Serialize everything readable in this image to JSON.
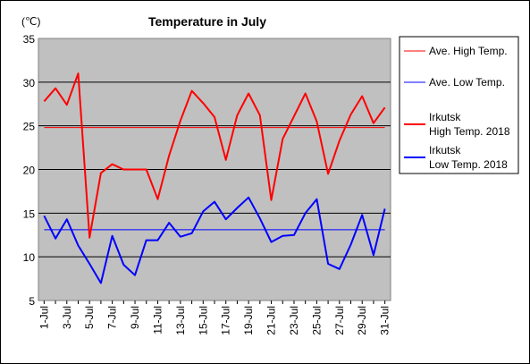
{
  "chart_data": {
    "type": "line",
    "title": "Temperature in July",
    "unit_label": "(℃)",
    "ylim": [
      5,
      35
    ],
    "y_ticks": [
      5,
      10,
      15,
      20,
      25,
      30,
      35
    ],
    "x": [
      "1-Jul",
      "2-Jul",
      "3-Jul",
      "4-Jul",
      "5-Jul",
      "6-Jul",
      "7-Jul",
      "8-Jul",
      "9-Jul",
      "10-Jul",
      "11-Jul",
      "12-Jul",
      "13-Jul",
      "14-Jul",
      "15-Jul",
      "16-Jul",
      "17-Jul",
      "18-Jul",
      "19-Jul",
      "20-Jul",
      "21-Jul",
      "22-Jul",
      "23-Jul",
      "24-Jul",
      "25-Jul",
      "26-Jul",
      "27-Jul",
      "28-Jul",
      "29-Jul",
      "30-Jul",
      "31-Jul"
    ],
    "x_tick_labels": [
      "1-Jul",
      "3-Jul",
      "5-Jul",
      "7-Jul",
      "9-Jul",
      "11-Jul",
      "13-Jul",
      "15-Jul",
      "17-Jul",
      "19-Jul",
      "21-Jul",
      "23-Jul",
      "25-Jul",
      "27-Jul",
      "29-Jul",
      "31-Jul"
    ],
    "grid": true,
    "legend_position": "right",
    "plot_background": "#c0c0c0",
    "series": [
      {
        "name": "Ave. High Temp.",
        "color": "#ff0000",
        "width": "thin",
        "values": [
          24.8,
          24.8,
          24.8,
          24.8,
          24.8,
          24.8,
          24.8,
          24.8,
          24.8,
          24.8,
          24.8,
          24.8,
          24.8,
          24.8,
          24.8,
          24.8,
          24.8,
          24.8,
          24.8,
          24.8,
          24.8,
          24.8,
          24.8,
          24.8,
          24.8,
          24.8,
          24.8,
          24.8,
          24.8,
          24.8,
          24.8
        ]
      },
      {
        "name": "Ave. Low Temp.",
        "color": "#0000ff",
        "width": "thin",
        "values": [
          13.1,
          13.1,
          13.1,
          13.1,
          13.1,
          13.1,
          13.1,
          13.1,
          13.1,
          13.1,
          13.1,
          13.1,
          13.1,
          13.1,
          13.1,
          13.1,
          13.1,
          13.1,
          13.1,
          13.1,
          13.1,
          13.1,
          13.1,
          13.1,
          13.1,
          13.1,
          13.1,
          13.1,
          13.1,
          13.1,
          13.1
        ]
      },
      {
        "name": "Irkutsk High Temp. 2018",
        "legend_lines": [
          "Irkutsk",
          "High Temp. 2018"
        ],
        "color": "#ff0000",
        "width": "thick",
        "values": [
          27.8,
          29.3,
          27.4,
          31.0,
          12.2,
          19.6,
          20.6,
          20.0,
          20.0,
          20.0,
          16.6,
          21.6,
          25.6,
          29.0,
          27.6,
          26.0,
          21.1,
          26.2,
          28.7,
          26.2,
          16.5,
          23.5,
          26.1,
          28.7,
          25.5,
          19.5,
          23.3,
          26.3,
          28.4,
          25.3,
          27.1
        ]
      },
      {
        "name": "Irkutsk Low Temp. 2018",
        "legend_lines": [
          "Irkutsk",
          "Low Temp. 2018"
        ],
        "color": "#0000ff",
        "width": "thick",
        "values": [
          14.7,
          12.1,
          14.3,
          11.3,
          9.2,
          7.0,
          12.4,
          9.1,
          7.9,
          11.9,
          11.9,
          13.9,
          12.3,
          12.7,
          15.2,
          16.3,
          14.3,
          15.6,
          16.8,
          14.4,
          11.7,
          12.4,
          12.5,
          15.0,
          16.6,
          9.2,
          8.6,
          11.4,
          14.8,
          10.2,
          15.5
        ]
      }
    ]
  }
}
